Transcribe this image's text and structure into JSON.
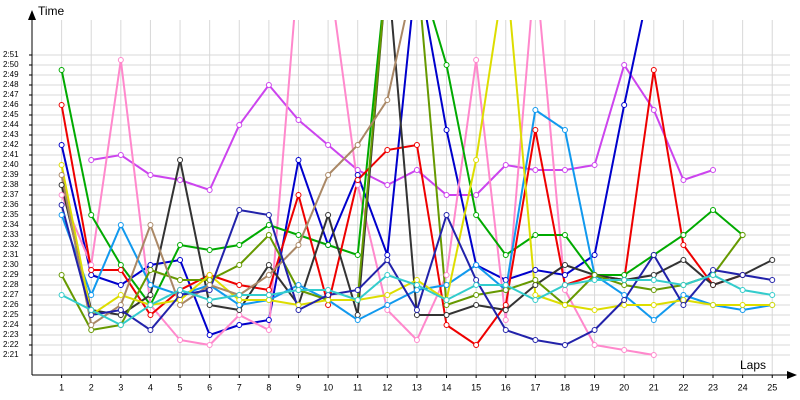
{
  "chart_data": {
    "type": "line",
    "y_label": "Time",
    "x_label": "Laps",
    "x": [
      1,
      2,
      3,
      4,
      5,
      6,
      7,
      8,
      9,
      10,
      11,
      12,
      13,
      14,
      15,
      16,
      17,
      18,
      19,
      20,
      21,
      22,
      23,
      24,
      25
    ],
    "xlim": [
      0,
      25.6
    ],
    "xticks": [
      1,
      2,
      3,
      4,
      5,
      6,
      7,
      8,
      9,
      10,
      11,
      12,
      13,
      14,
      15,
      16,
      17,
      18,
      19,
      20,
      21,
      22,
      23,
      24,
      25
    ],
    "ylim": [
      139,
      174.5
    ],
    "yticks": [
      {
        "value": 141,
        "label": "2:21"
      },
      {
        "value": 142,
        "label": "2:22"
      },
      {
        "value": 143,
        "label": "2:23"
      },
      {
        "value": 144,
        "label": "2:24"
      },
      {
        "value": 145,
        "label": "2:25"
      },
      {
        "value": 146,
        "label": "2:26"
      },
      {
        "value": 147,
        "label": "2:27"
      },
      {
        "value": 148,
        "label": "2:28"
      },
      {
        "value": 149,
        "label": "2:29"
      },
      {
        "value": 150,
        "label": "2:30"
      },
      {
        "value": 151,
        "label": "2:31"
      },
      {
        "value": 152,
        "label": "2:32"
      },
      {
        "value": 153,
        "label": "2:33"
      },
      {
        "value": 154,
        "label": "2:34"
      },
      {
        "value": 155,
        "label": "2:35"
      },
      {
        "value": 156,
        "label": "2:36"
      },
      {
        "value": 157,
        "label": "2:37"
      },
      {
        "value": 158,
        "label": "2:38"
      },
      {
        "value": 159,
        "label": "2:39"
      },
      {
        "value": 160,
        "label": "2:40"
      },
      {
        "value": 161,
        "label": "2:41"
      },
      {
        "value": 162,
        "label": "2:42"
      },
      {
        "value": 163,
        "label": "2:43"
      },
      {
        "value": 164,
        "label": "2:44"
      },
      {
        "value": 165,
        "label": "2:45"
      },
      {
        "value": 166,
        "label": "2:46"
      },
      {
        "value": 167,
        "label": "2:47"
      },
      {
        "value": 168,
        "label": "2:48"
      },
      {
        "value": 169,
        "label": "2:49"
      },
      {
        "value": 170,
        "label": "2:50"
      },
      {
        "value": 171,
        "label": "2:51"
      }
    ],
    "grid": true,
    "series": [
      {
        "color": "#cc44ee",
        "values": [
          null,
          160.5,
          161,
          159,
          158.5,
          157.5,
          164,
          168,
          164.5,
          162,
          159.5,
          158,
          159.5,
          157,
          157,
          160,
          159.5,
          159.5,
          160,
          170,
          165.5,
          158.5,
          159.5,
          null,
          null
        ]
      },
      {
        "color": "#0000cc",
        "values": [
          162,
          149,
          148,
          150,
          150.5,
          143,
          144,
          144.5,
          160.5,
          152,
          159,
          151,
          180,
          163.5,
          150,
          148.5,
          149.5,
          149,
          151,
          166,
          180,
          null,
          null,
          null,
          null
        ]
      },
      {
        "color": "#ff88cc",
        "values": [
          157,
          150,
          170.5,
          146,
          142.5,
          142,
          145,
          143.5,
          180,
          180,
          158,
          145.5,
          142.5,
          149,
          170.5,
          144.5,
          180,
          147.5,
          142,
          141.5,
          141,
          null,
          null,
          null,
          null
        ]
      },
      {
        "color": "#00aa00",
        "values": [
          169.5,
          155,
          150,
          146,
          152,
          151.5,
          152,
          154,
          153,
          152,
          151,
          180,
          180,
          170,
          155,
          151,
          153,
          153,
          149,
          149,
          151,
          153,
          155.5,
          153,
          null
        ]
      },
      {
        "color": "#ee0000",
        "values": [
          166,
          149.5,
          149.5,
          145,
          147.5,
          149,
          148,
          147.5,
          157,
          146,
          158.5,
          161.5,
          162,
          144,
          142,
          146,
          163.5,
          148,
          149,
          148.5,
          169.5,
          152,
          148,
          149,
          null
        ]
      },
      {
        "color": "#333333",
        "values": [
          158,
          145.5,
          145,
          147,
          160.5,
          146,
          145.5,
          150,
          146,
          155,
          145,
          180,
          145,
          145,
          146,
          145.5,
          148,
          150,
          149,
          148.5,
          149,
          150.5,
          148,
          149,
          150.5
        ]
      },
      {
        "color": "#1199ee",
        "values": [
          155,
          147,
          154,
          148,
          147,
          148,
          146,
          146.5,
          148,
          146.5,
          144.5,
          146,
          147.5,
          148,
          150,
          147.5,
          165.5,
          163.5,
          149,
          147,
          144.5,
          147,
          146,
          145.5,
          146
        ]
      },
      {
        "color": "#669900",
        "values": [
          149,
          143.5,
          144,
          149.5,
          148.5,
          148.5,
          150,
          153,
          147.5,
          146.5,
          146.5,
          180,
          180,
          146,
          147,
          147.5,
          148.5,
          146,
          149,
          148,
          147.5,
          148,
          149,
          153,
          null
        ]
      },
      {
        "color": "#dddd00",
        "values": [
          160,
          145,
          147,
          146,
          146.5,
          149,
          146.5,
          146.5,
          146,
          146.5,
          146.5,
          147,
          148.5,
          146.5,
          160.5,
          180,
          147,
          146,
          145.5,
          146,
          146,
          146.5,
          146,
          146,
          146
        ]
      },
      {
        "color": "#aa8866",
        "values": [
          159,
          144,
          146,
          154,
          146,
          148,
          147,
          149,
          152,
          159,
          162,
          166.5,
          180,
          null,
          null,
          null,
          null,
          null,
          null,
          null,
          null,
          null,
          null,
          null,
          null
        ]
      },
      {
        "color": "#2222aa",
        "values": [
          156,
          145,
          145.5,
          143.5,
          147,
          147.5,
          155.5,
          155,
          145.5,
          147,
          147.5,
          150.5,
          145.5,
          155,
          148.5,
          143.5,
          142.5,
          142,
          143.5,
          146.5,
          151,
          146,
          149.5,
          149,
          148.5
        ]
      },
      {
        "color": "#33cccc",
        "values": [
          147,
          145.5,
          144,
          146,
          147.5,
          146.5,
          147,
          147,
          147.5,
          147.5,
          146.5,
          149,
          148,
          146.5,
          148,
          148,
          146.5,
          148,
          148.5,
          148.5,
          148.5,
          148,
          149,
          147.5,
          147
        ]
      }
    ]
  }
}
